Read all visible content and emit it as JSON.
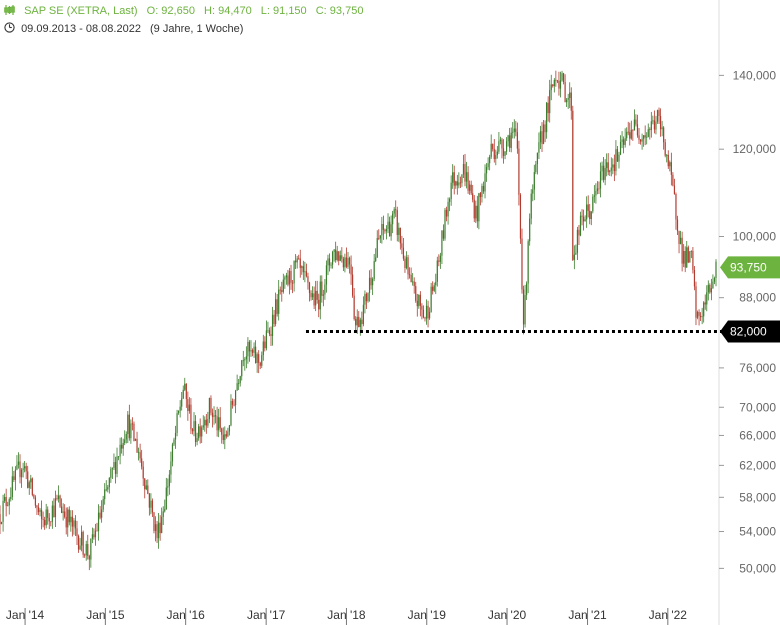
{
  "header": {
    "instrument": "SAP SE (XETRA, Last)",
    "open": "O: 92,650",
    "high": "H: 94,470",
    "low": "L: 91,150",
    "close": "C: 93,750",
    "date_range": "09.09.2013 - 08.08.2022",
    "duration": "(9 Jahre, 1 Woche)",
    "ohlc_icon": "candlestick-icon",
    "range_icon": "clock-icon"
  },
  "colors": {
    "accent": "#6db33f",
    "up": "#3a7d2c",
    "down": "#b23a2e",
    "support_line": "#000000",
    "last_badge": "#6db33f"
  },
  "chart_data": {
    "type": "candlestick",
    "title": "",
    "y_scale": "log",
    "ylim": [
      47000,
      152000
    ],
    "y_ticks": [
      {
        "value": 140000,
        "label": "140,000"
      },
      {
        "value": 120000,
        "label": "120,000"
      },
      {
        "value": 100000,
        "label": "100,000"
      },
      {
        "value": 88000,
        "label": "88,000"
      },
      {
        "value": 76000,
        "label": "76,000"
      },
      {
        "value": 70000,
        "label": "70,000"
      },
      {
        "value": 66000,
        "label": "66,000"
      },
      {
        "value": 62000,
        "label": "62,000"
      },
      {
        "value": 58000,
        "label": "58,000"
      },
      {
        "value": 54000,
        "label": "54,000"
      },
      {
        "value": 50000,
        "label": "50,000"
      }
    ],
    "x_ticks": [
      {
        "date": "2014-01-01",
        "label": "Jan '14"
      },
      {
        "date": "2015-01-01",
        "label": "Jan '15"
      },
      {
        "date": "2016-01-01",
        "label": "Jan '16"
      },
      {
        "date": "2017-01-01",
        "label": "Jan '17"
      },
      {
        "date": "2018-01-01",
        "label": "Jan '18"
      },
      {
        "date": "2019-01-01",
        "label": "Jan '19"
      },
      {
        "date": "2020-01-01",
        "label": "Jan '20"
      },
      {
        "date": "2021-01-01",
        "label": "Jan '21"
      },
      {
        "date": "2022-01-01",
        "label": "Jan '22"
      }
    ],
    "xlim": [
      "2013-09-09",
      "2022-08-08"
    ],
    "price_path": [
      [
        "2013-09-09",
        56000
      ],
      [
        "2013-11-15",
        60000
      ],
      [
        "2013-12-20",
        62500
      ],
      [
        "2014-03-15",
        55000
      ],
      [
        "2014-06-01",
        57500
      ],
      [
        "2014-08-15",
        54000
      ],
      [
        "2014-10-20",
        51500
      ],
      [
        "2014-12-10",
        56000
      ],
      [
        "2015-04-10",
        68000
      ],
      [
        "2015-06-01",
        64000
      ],
      [
        "2015-08-24",
        53500
      ],
      [
        "2015-10-01",
        58000
      ],
      [
        "2015-12-20",
        73000
      ],
      [
        "2016-02-11",
        66000
      ],
      [
        "2016-04-20",
        70000
      ],
      [
        "2016-06-27",
        65000
      ],
      [
        "2016-09-20",
        79000
      ],
      [
        "2016-12-01",
        77000
      ],
      [
        "2017-03-01",
        88000
      ],
      [
        "2017-05-20",
        94000
      ],
      [
        "2017-07-20",
        89000
      ],
      [
        "2017-08-20",
        87000
      ],
      [
        "2017-11-01",
        97000
      ],
      [
        "2018-01-20",
        95000
      ],
      [
        "2018-02-10",
        83000
      ],
      [
        "2018-03-20",
        86000
      ],
      [
        "2018-06-01",
        100000
      ],
      [
        "2018-08-10",
        104000
      ],
      [
        "2018-10-20",
        90000
      ],
      [
        "2018-12-24",
        84500
      ],
      [
        "2019-02-15",
        92000
      ],
      [
        "2019-04-20",
        112000
      ],
      [
        "2019-06-20",
        115000
      ],
      [
        "2019-08-15",
        104500
      ],
      [
        "2019-10-20",
        120000
      ],
      [
        "2019-12-15",
        121000
      ],
      [
        "2020-01-20",
        124000
      ],
      [
        "2020-02-15",
        122000
      ],
      [
        "2020-03-18",
        82000
      ],
      [
        "2020-04-10",
        104000
      ],
      [
        "2020-06-01",
        122000
      ],
      [
        "2020-08-10",
        141000
      ],
      [
        "2020-10-20",
        132000
      ],
      [
        "2020-10-26",
        96000
      ],
      [
        "2020-12-10",
        104000
      ],
      [
        "2021-01-20",
        106000
      ],
      [
        "2021-03-15",
        115000
      ],
      [
        "2021-05-20",
        118000
      ],
      [
        "2021-07-20",
        126000
      ],
      [
        "2021-09-20",
        124000
      ],
      [
        "2021-11-15",
        128000
      ],
      [
        "2021-12-20",
        121000
      ],
      [
        "2022-02-15",
        103000
      ],
      [
        "2022-03-08",
        96000
      ],
      [
        "2022-04-20",
        95000
      ],
      [
        "2022-05-12",
        83500
      ],
      [
        "2022-06-20",
        87000
      ],
      [
        "2022-07-20",
        91000
      ],
      [
        "2022-08-08",
        93750
      ]
    ],
    "support": {
      "value": 82000,
      "label": "82,000",
      "from": "2017-07-01"
    },
    "last": {
      "value": 93750,
      "label": "93,750"
    }
  }
}
